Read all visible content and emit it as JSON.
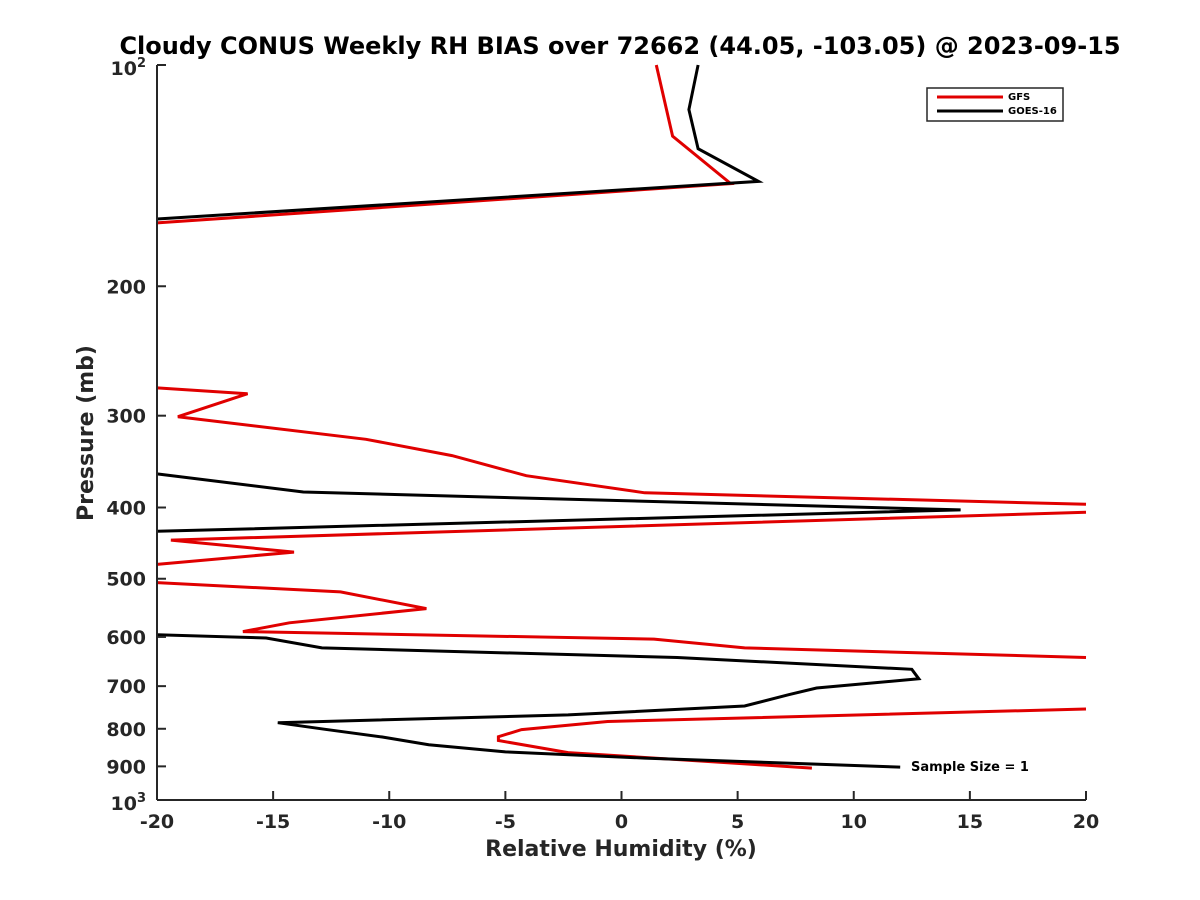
{
  "chart_data": {
    "type": "line",
    "title": "Cloudy CONUS Weekly RH BIAS over 72662 (44.05, -103.05) @ 2023-09-15",
    "xlabel": "Relative Humidity (%)",
    "ylabel": "Pressure (mb)",
    "xlim": [
      -20,
      20
    ],
    "ylim": [
      100,
      1000
    ],
    "yscale": "log",
    "y_reversed": true,
    "grid": false,
    "legend_position": "top-right",
    "x_ticks": [
      -20,
      -15,
      -10,
      -5,
      0,
      5,
      10,
      15,
      20
    ],
    "x_tick_labels": [
      "-20",
      "-15",
      "-10",
      "-5",
      "0",
      "5",
      "10",
      "15",
      "20"
    ],
    "y_ticks": [
      200,
      300,
      400,
      500,
      600,
      700,
      800,
      900
    ],
    "y_tick_labels": [
      "200",
      "300",
      "400",
      "500",
      "600",
      "700",
      "800",
      "900"
    ],
    "y_min_label": {
      "base": "10",
      "exp": "2"
    },
    "y_max_label": {
      "base": "10",
      "exp": "3"
    },
    "annotation": "Sample Size = 1",
    "series": [
      {
        "name": "GFS",
        "color": "#e00000",
        "points": [
          [
            [
              1.5,
              100
            ],
            [
              2.2,
              125
            ],
            [
              4.7,
              145
            ],
            [
              -20,
              164
            ]
          ],
          [
            [
              -20,
              275
            ],
            [
              -16.1,
              280
            ],
            [
              -19.1,
              301
            ],
            [
              -11,
              323
            ],
            [
              -7.3,
              340
            ],
            [
              -4.1,
              362
            ],
            [
              1,
              382
            ],
            [
              20,
              396
            ]
          ],
          [
            [
              20,
              406
            ],
            [
              -19.4,
              443
            ],
            [
              -14.1,
              460
            ],
            [
              -20,
              478
            ]
          ],
          [
            [
              -20,
              506
            ],
            [
              -12.1,
              521
            ],
            [
              -8.4,
              549
            ],
            [
              -14.3,
              574
            ],
            [
              -16.3,
              590
            ],
            [
              1.4,
              604
            ],
            [
              5.3,
              621
            ],
            [
              20,
              640
            ]
          ],
          [
            [
              20,
              752
            ],
            [
              -0.6,
              782
            ],
            [
              -4.3,
              802
            ],
            [
              -5.3,
              820
            ],
            [
              -5.3,
              830
            ],
            [
              -2.3,
              862
            ],
            [
              8.2,
              905
            ]
          ]
        ]
      },
      {
        "name": "GOES-16",
        "color": "#000000",
        "points": [
          [
            [
              3.3,
              100
            ],
            [
              2.9,
              115
            ],
            [
              3.3,
              130
            ],
            [
              5.9,
              144
            ],
            [
              -20,
              162
            ]
          ],
          [
            [
              -20,
              360
            ],
            [
              -13.7,
              381
            ],
            [
              14.6,
              403
            ],
            [
              -20,
              431
            ]
          ],
          [
            [
              -20,
              596
            ],
            [
              -15.3,
              602
            ],
            [
              -12.9,
              621
            ],
            [
              2.4,
              640
            ],
            [
              12.5,
              664
            ],
            [
              12.8,
              684
            ],
            [
              8.4,
              704
            ],
            [
              7.2,
              719
            ],
            [
              5.3,
              745
            ],
            [
              -2.3,
              766
            ],
            [
              -14.8,
              785
            ],
            [
              -12.8,
              801
            ],
            [
              -10.3,
              821
            ],
            [
              -8.3,
              841
            ],
            [
              -5,
              860
            ],
            [
              1,
              877
            ],
            [
              12,
              902
            ]
          ]
        ]
      }
    ]
  }
}
